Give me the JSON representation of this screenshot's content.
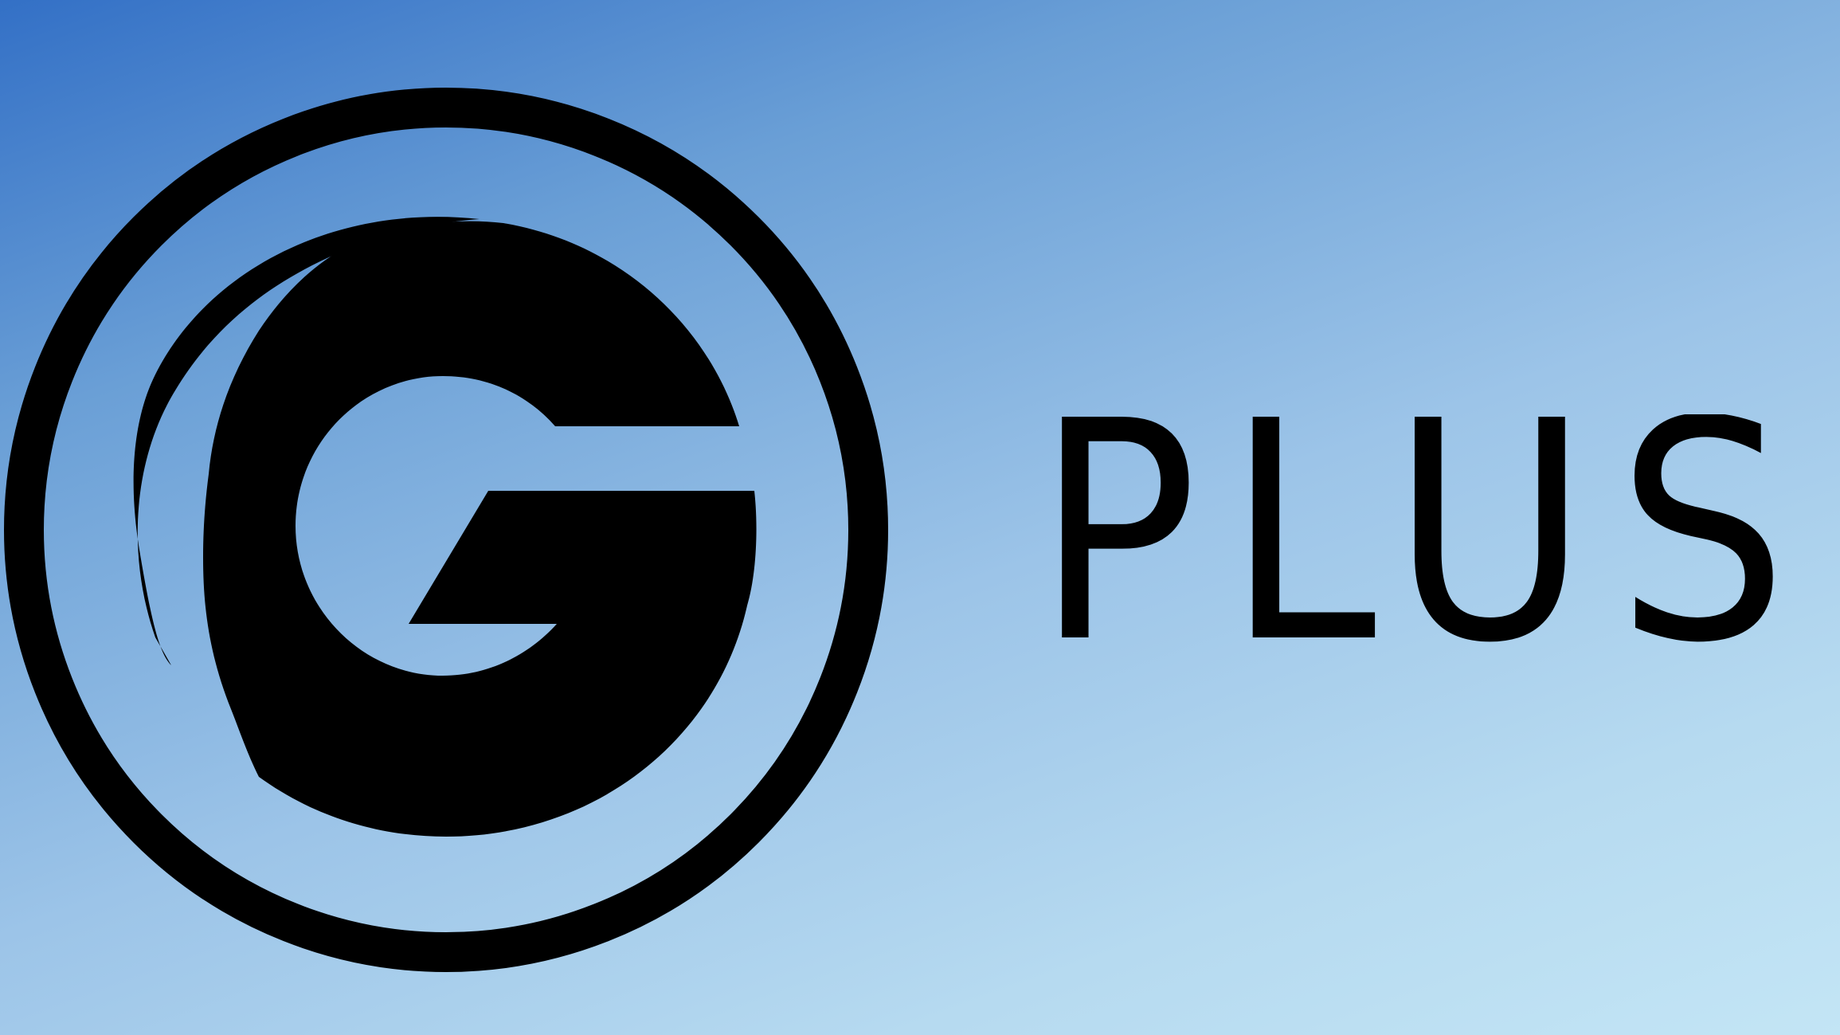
{
  "brand": {
    "wordmark": "PLUS",
    "emblem_letter": "G",
    "icon": "g-circle-logo-icon"
  },
  "colors": {
    "ink": "#000000",
    "background_start": "#3370c6",
    "background_end": "#c3e5f5"
  }
}
